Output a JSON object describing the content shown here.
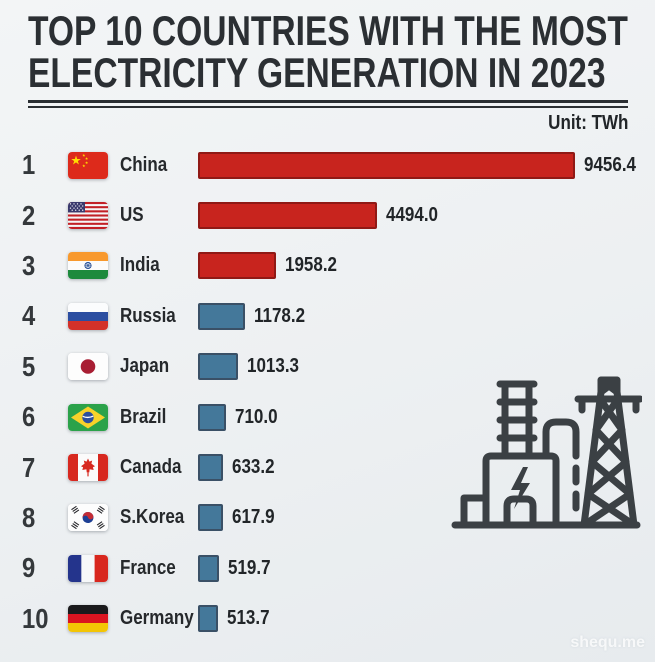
{
  "title_line1": "TOP 10 COUNTRIES WITH THE MOST",
  "title_line2": "ELECTRICITY GENERATION IN 2023",
  "unit_label": "Unit: TWh",
  "watermark": "shequ.me",
  "colors": {
    "background": "#eef0f2",
    "title": "#2b2f33",
    "red_bar": "#c8241e",
    "blue_bar": "#44789a",
    "icon_stroke": "#3b4044"
  },
  "chart_data": {
    "type": "bar",
    "orientation": "horizontal",
    "title": "TOP 10 COUNTRIES WITH THE MOST ELECTRICITY GENERATION IN 2023",
    "unit": "TWh",
    "xlim": [
      0,
      9456.4
    ],
    "max_value": 9456.4,
    "legend": "none",
    "grid": false,
    "categories": [
      "China",
      "US",
      "India",
      "Russia",
      "Japan",
      "Brazil",
      "Canada",
      "S.Korea",
      "France",
      "Germany"
    ],
    "values": [
      9456.4,
      4494.0,
      1958.2,
      1178.2,
      1013.3,
      710.0,
      633.2,
      617.9,
      519.7,
      513.7
    ],
    "rows": [
      {
        "rank": "1",
        "country": "China",
        "flag": "china-flag",
        "value": 9456.4,
        "value_label": "9456.4",
        "color": "#c8241e"
      },
      {
        "rank": "2",
        "country": "US",
        "flag": "us-flag",
        "value": 4494.0,
        "value_label": "4494.0",
        "color": "#c8241e"
      },
      {
        "rank": "3",
        "country": "India",
        "flag": "india-flag",
        "value": 1958.2,
        "value_label": "1958.2",
        "color": "#c8241e"
      },
      {
        "rank": "4",
        "country": "Russia",
        "flag": "russia-flag",
        "value": 1178.2,
        "value_label": "1178.2",
        "color": "#44789a"
      },
      {
        "rank": "5",
        "country": "Japan",
        "flag": "japan-flag",
        "value": 1013.3,
        "value_label": "1013.3",
        "color": "#44789a"
      },
      {
        "rank": "6",
        "country": "Brazil",
        "flag": "brazil-flag",
        "value": 710.0,
        "value_label": "710.0",
        "color": "#44789a"
      },
      {
        "rank": "7",
        "country": "Canada",
        "flag": "canada-flag",
        "value": 633.2,
        "value_label": "633.2",
        "color": "#44789a"
      },
      {
        "rank": "8",
        "country": "S.Korea",
        "flag": "skorea-flag",
        "value": 617.9,
        "value_label": "617.9",
        "color": "#44789a"
      },
      {
        "rank": "9",
        "country": "France",
        "flag": "france-flag",
        "value": 519.7,
        "value_label": "519.7",
        "color": "#44789a"
      },
      {
        "rank": "10",
        "country": "Germany",
        "flag": "germany-flag",
        "value": 513.7,
        "value_label": "513.7",
        "color": "#44789a"
      }
    ]
  }
}
